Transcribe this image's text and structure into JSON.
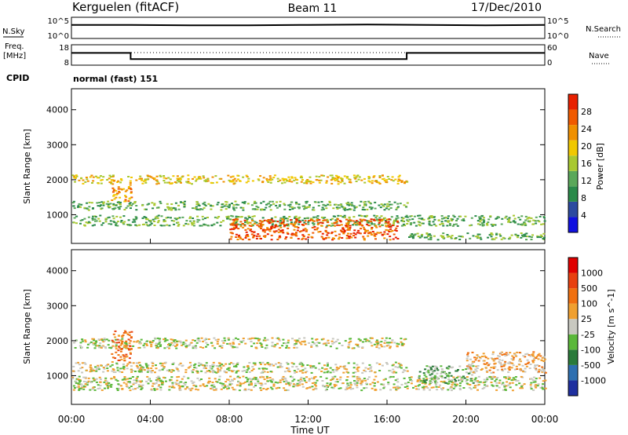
{
  "header": {
    "station": "Kerguelen (fitACF)",
    "beam": "Beam 11",
    "date": "17/Dec/2010"
  },
  "side_labels": {
    "nsky": "N.Sky",
    "freq_line1": "Freq.",
    "freq_line2": "[MHz]",
    "cpid": "CPID",
    "nsearch": "N.Search",
    "nave": "Nave"
  },
  "noise_panel": {
    "left_ticks": [
      "10^5",
      "10^0"
    ],
    "right_ticks": [
      "10^5",
      "10^0"
    ]
  },
  "freq_panel": {
    "left_ticks": [
      "18",
      "8"
    ],
    "right_ticks": [
      "60",
      "0"
    ]
  },
  "cpid_text": "normal (fast) 151",
  "colors": {
    "power": [
      "#1010e0",
      "#2c4aa0",
      "#2a8a4a",
      "#5aa85a",
      "#a8c830",
      "#f0c800",
      "#f09000",
      "#f05a00",
      "#e82000"
    ],
    "velocity": [
      "#1f2f9f",
      "#2e6fb0",
      "#2a7a3a",
      "#5ab83a",
      "#c8c8c0",
      "#f0a030",
      "#f07010",
      "#e84010",
      "#e00000"
    ],
    "axis": "#000000",
    "gray": "#c0c0b8"
  },
  "chart_data": [
    {
      "type": "heatmap",
      "name": "power",
      "ylabel": "Slant Range [km]",
      "colorbar_label": "Power [dB]",
      "colorbar_ticks": [
        "28",
        "24",
        "20",
        "16",
        "12",
        "8",
        "4"
      ],
      "yticks": [
        "4000",
        "3000",
        "2000",
        "1000"
      ],
      "ylim": [
        180,
        4600
      ],
      "xlim": [
        0,
        24
      ],
      "echo_bands": [
        {
          "t0": 0.0,
          "t1": 17.0,
          "r0": 1900,
          "r1": 2150,
          "level": 5
        },
        {
          "t0": 0.0,
          "t1": 17.0,
          "r0": 1150,
          "r1": 1400,
          "level": 3
        },
        {
          "t0": 0.0,
          "t1": 24.0,
          "r0": 700,
          "r1": 1000,
          "level": 3
        },
        {
          "t0": 8.0,
          "t1": 16.5,
          "r0": 300,
          "r1": 900,
          "level": 7
        },
        {
          "t0": 17.0,
          "t1": 24.0,
          "r0": 300,
          "r1": 500,
          "level": 3
        },
        {
          "t0": 2.0,
          "t1": 3.0,
          "r0": 1400,
          "r1": 1900,
          "level": 6
        }
      ]
    },
    {
      "type": "heatmap",
      "name": "velocity",
      "ylabel": "Slant Range [km]",
      "colorbar_label": "Velocity [m s^-1]",
      "colorbar_ticks": [
        "1000",
        "500",
        "100",
        "25",
        "-25",
        "-100",
        "-500",
        "-1000"
      ],
      "yticks": [
        "4000",
        "3000",
        "2000",
        "1000"
      ],
      "xticks": [
        "00:00",
        "04:00",
        "08:00",
        "12:00",
        "16:00",
        "20:00",
        "00:00"
      ],
      "xlabel": "Time UT",
      "ylim": [
        180,
        4600
      ],
      "xlim": [
        0,
        24
      ],
      "echo_bands": [
        {
          "t0": 0.0,
          "t1": 17.0,
          "r0": 1800,
          "r1": 2100,
          "level": 4
        },
        {
          "t0": 0.0,
          "t1": 17.0,
          "r0": 1100,
          "r1": 1400,
          "level": 4
        },
        {
          "t0": 2.0,
          "t1": 3.0,
          "r0": 1400,
          "r1": 2300,
          "level": 6
        },
        {
          "t0": 0.0,
          "t1": 24.0,
          "r0": 600,
          "r1": 1000,
          "level": 4
        },
        {
          "t0": 17.5,
          "t1": 20.5,
          "r0": 800,
          "r1": 1300,
          "level": 3
        },
        {
          "t0": 20.0,
          "t1": 24.0,
          "r0": 1100,
          "r1": 1700,
          "level": 5
        }
      ]
    },
    {
      "type": "line",
      "name": "frequency",
      "x": [
        0,
        3,
        3,
        17,
        17,
        24
      ],
      "y": [
        14,
        14,
        11,
        11,
        14,
        14
      ],
      "ylim": [
        8,
        18
      ]
    },
    {
      "type": "line",
      "name": "noise",
      "x": [
        0,
        3,
        6,
        9,
        12,
        15,
        18,
        21,
        24
      ],
      "y": [
        3.2,
        3.2,
        3.1,
        3.1,
        3.2,
        3.3,
        3.2,
        3.1,
        3.2
      ],
      "ylim": [
        0,
        5
      ]
    }
  ]
}
